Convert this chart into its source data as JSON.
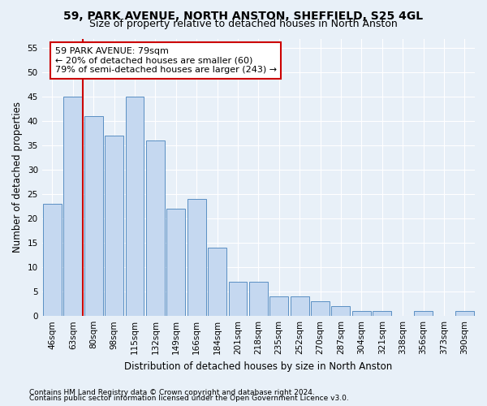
{
  "title1": "59, PARK AVENUE, NORTH ANSTON, SHEFFIELD, S25 4GL",
  "title2": "Size of property relative to detached houses in North Anston",
  "xlabel": "Distribution of detached houses by size in North Anston",
  "ylabel": "Number of detached properties",
  "footnote1": "Contains HM Land Registry data © Crown copyright and database right 2024.",
  "footnote2": "Contains public sector information licensed under the Open Government Licence v3.0.",
  "categories": [
    "46sqm",
    "63sqm",
    "80sqm",
    "98sqm",
    "115sqm",
    "132sqm",
    "149sqm",
    "166sqm",
    "184sqm",
    "201sqm",
    "218sqm",
    "235sqm",
    "252sqm",
    "270sqm",
    "287sqm",
    "304sqm",
    "321sqm",
    "338sqm",
    "356sqm",
    "373sqm",
    "390sqm"
  ],
  "values": [
    23,
    45,
    41,
    37,
    45,
    36,
    22,
    24,
    14,
    7,
    7,
    4,
    4,
    3,
    2,
    1,
    1,
    0,
    1,
    0,
    1
  ],
  "bar_color": "#c5d8f0",
  "bar_edge_color": "#5a8fc3",
  "property_line_color": "#cc0000",
  "annotation_text": "59 PARK AVENUE: 79sqm\n← 20% of detached houses are smaller (60)\n79% of semi-detached houses are larger (243) →",
  "annotation_box_color": "#ffffff",
  "annotation_box_edge": "#cc0000",
  "ylim": [
    0,
    57
  ],
  "yticks": [
    0,
    5,
    10,
    15,
    20,
    25,
    30,
    35,
    40,
    45,
    50,
    55
  ],
  "background_color": "#e8f0f8",
  "grid_color": "#ffffff",
  "title_fontsize": 10,
  "subtitle_fontsize": 9,
  "axis_label_fontsize": 8.5,
  "tick_fontsize": 7.5,
  "annot_fontsize": 8,
  "footnote_fontsize": 6.5
}
